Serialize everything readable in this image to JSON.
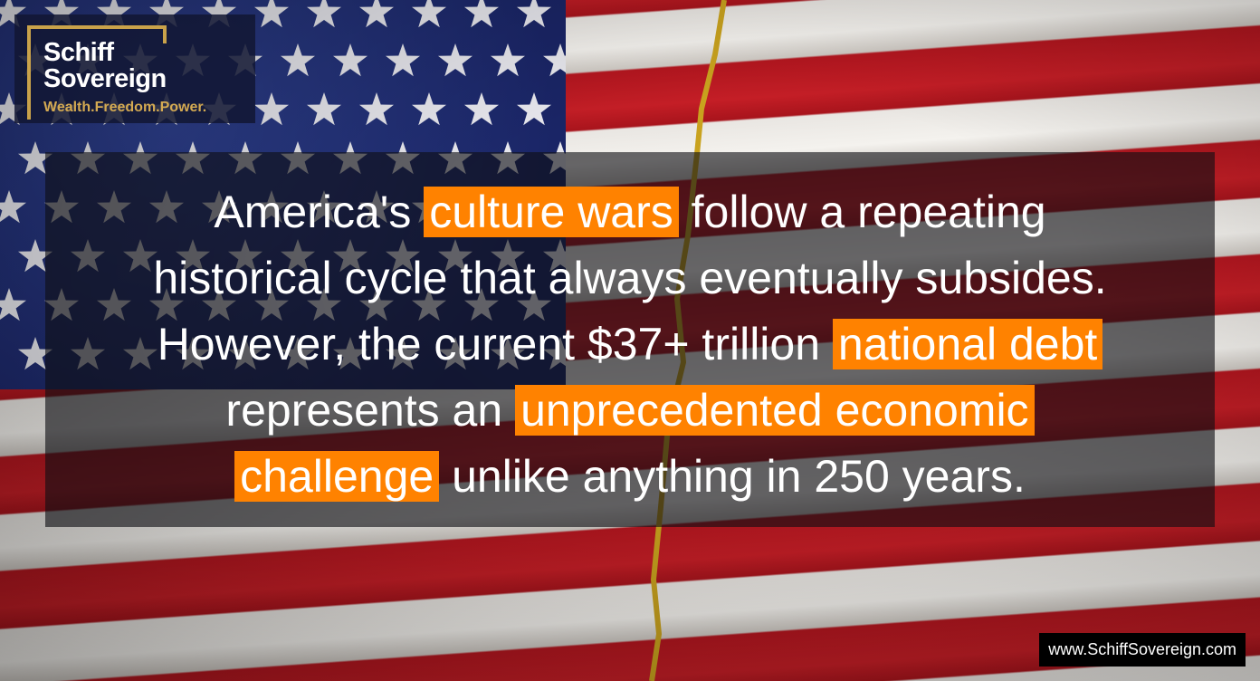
{
  "logo": {
    "line1": "Schiff",
    "line2": "Sovereign",
    "tagline": "Wealth.Freedom.Power."
  },
  "message": {
    "lines": [
      [
        {
          "t": "America's "
        },
        {
          "t": "culture wars",
          "hl": true
        },
        {
          "t": " follow a repeating"
        }
      ],
      [
        {
          "t": "historical cycle that always eventually subsides."
        }
      ],
      [
        {
          "t": "However, the current $37+ trillion "
        },
        {
          "t": "national debt",
          "hl": true
        }
      ],
      [
        {
          "t": "represents an "
        },
        {
          "t": "unprecedented economic",
          "hl": true
        }
      ],
      [
        {
          "t": "challenge",
          "hl": true
        },
        {
          "t": " unlike anything in 250 years."
        }
      ]
    ]
  },
  "footer": {
    "url": "www.SchiffSovereign.com"
  },
  "colors": {
    "highlight": "#ff8200",
    "logo_gold": "#c9a24a",
    "flag_blue": "#1a2566",
    "flag_red": "#b3161f"
  }
}
